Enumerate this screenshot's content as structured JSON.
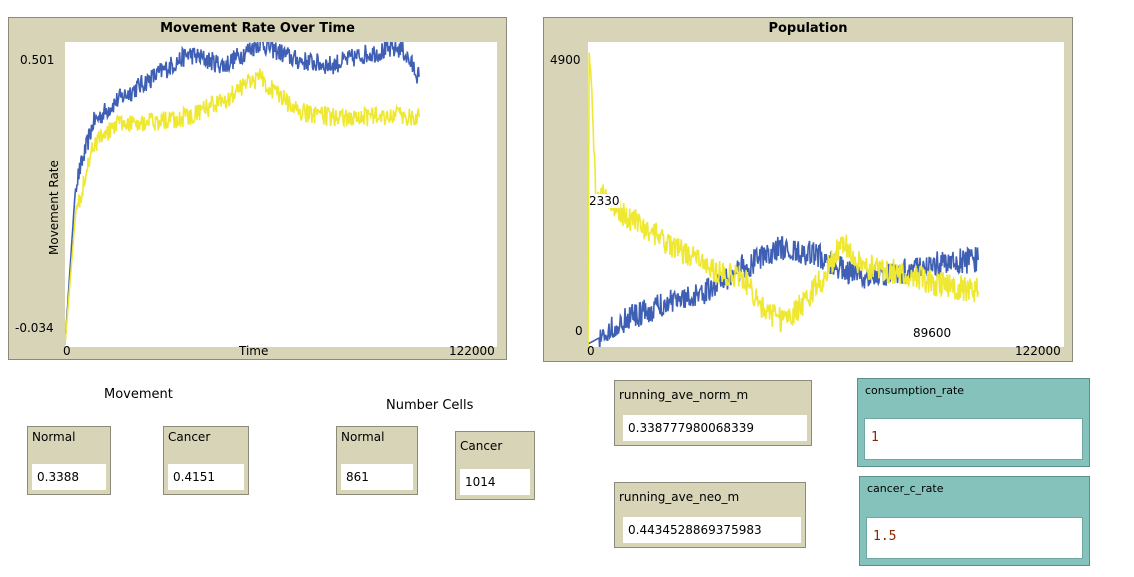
{
  "colors": {
    "normal_series": "#3e5fb4",
    "cancer_series": "#efe833",
    "plot_bg": "#d7d4b8",
    "input_bg": "#84c2bb",
    "input_value": "#8b2500"
  },
  "movement_plot": {
    "title": "Movement Rate Over Time",
    "xlabel": "Time",
    "ylabel": "Movement Rate",
    "y_max_label": "0.501",
    "y_min_label": "-0.034",
    "x_min_label": "0",
    "x_max_label": "122000"
  },
  "population_plot": {
    "title": "Population",
    "y_max_label": "4900",
    "y_mid_label": "2330",
    "y_min_label": "0",
    "x_min_label": "0",
    "x_max_label": "122000",
    "x_mid_label": "89600"
  },
  "chart_data": [
    {
      "type": "line",
      "title": "Movement Rate Over Time",
      "xlabel": "Time",
      "ylabel": "Movement Rate",
      "xlim": [
        0,
        122000
      ],
      "ylim": [
        -0.034,
        0.501
      ],
      "series": [
        {
          "color": "#3e5fb4",
          "x": [
            0,
            3000,
            8000,
            15000,
            25000,
            35000,
            45000,
            55000,
            65000,
            75000,
            85000,
            95000,
            100000
          ],
          "y": [
            -0.03,
            0.25,
            0.36,
            0.4,
            0.44,
            0.48,
            0.46,
            0.5,
            0.47,
            0.46,
            0.48,
            0.49,
            0.44
          ]
        },
        {
          "color": "#efe833",
          "x": [
            0,
            3000,
            8000,
            15000,
            25000,
            35000,
            45000,
            55000,
            65000,
            75000,
            85000,
            95000,
            100000
          ],
          "y": [
            -0.03,
            0.2,
            0.32,
            0.36,
            0.36,
            0.37,
            0.4,
            0.44,
            0.38,
            0.37,
            0.37,
            0.37,
            0.37
          ]
        }
      ]
    },
    {
      "type": "line",
      "title": "Population",
      "xlim": [
        0,
        122000
      ],
      "ylim": [
        0,
        4900
      ],
      "series": [
        {
          "color": "#3e5fb4",
          "x": [
            0,
            3000,
            10000,
            20000,
            30000,
            40000,
            50000,
            60000,
            65000,
            70000,
            80000,
            90000,
            100000
          ],
          "y": [
            50,
            150,
            450,
            700,
            900,
            1300,
            1600,
            1450,
            1250,
            1100,
            1200,
            1350,
            1400
          ]
        },
        {
          "color": "#efe833",
          "x": [
            0,
            300,
            2000,
            10000,
            20000,
            30000,
            40000,
            45000,
            50000,
            55000,
            60000,
            65000,
            70000,
            80000,
            90000,
            100000
          ],
          "y": [
            0,
            4900,
            2500,
            2100,
            1700,
            1300,
            1100,
            600,
            400,
            700,
            1100,
            1700,
            1300,
            1200,
            1000,
            900
          ]
        }
      ]
    }
  ],
  "labels": {
    "movement": "Movement",
    "number_cells": "Number Cells"
  },
  "monitors": {
    "move_normal": {
      "name": "Normal",
      "value": "0.3388"
    },
    "move_cancer": {
      "name": "Cancer",
      "value": "0.4151"
    },
    "cells_normal": {
      "name": "Normal",
      "value": "861"
    },
    "cells_cancer": {
      "name": "Cancer",
      "value": "1014"
    },
    "running_norm": {
      "name": "running_ave_norm_m",
      "value": "0.338777980068339"
    },
    "running_neo": {
      "name": "running_ave_neo_m",
      "value": "0.4434528869375983"
    }
  },
  "inputs": {
    "consumption_rate": {
      "name": "consumption_rate",
      "value": "1"
    },
    "cancer_c_rate": {
      "name": "cancer_c_rate",
      "value": "1.5"
    }
  }
}
